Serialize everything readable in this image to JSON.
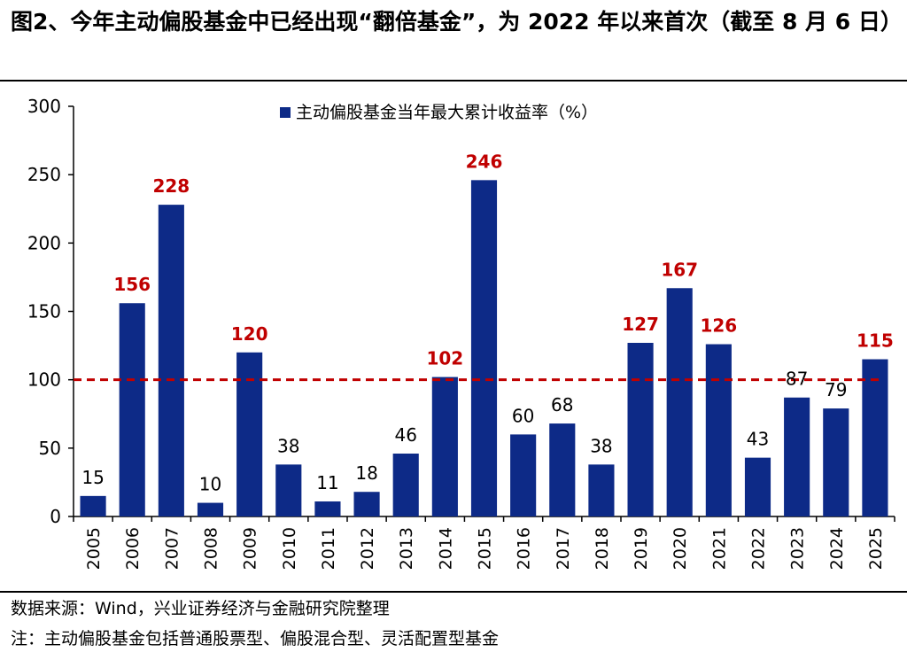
{
  "title": "图2、今年主动偏股基金中已经出现“翻倍基金”，为 2022 年以来首次（截至 8 月 6 日）",
  "source": "数据来源：Wind，兴业证券经济与金融研究院整理",
  "note": "注：主动偏股基金包括普通股票型、偏股混合型、灵活配置型基金",
  "colors": {
    "bar": "#0d2a87",
    "highlight_label": "#c00000",
    "normal_label": "#000000",
    "reference_line": "#c00000"
  },
  "chart_data": {
    "type": "bar",
    "categories": [
      "2005",
      "2006",
      "2007",
      "2008",
      "2009",
      "2010",
      "2011",
      "2012",
      "2013",
      "2014",
      "2015",
      "2016",
      "2017",
      "2018",
      "2019",
      "2020",
      "2021",
      "2022",
      "2023",
      "2024",
      "2025"
    ],
    "series": [
      {
        "name": "主动偏股基金当年最大累计收益率（%）",
        "values": [
          15,
          156,
          228,
          10,
          120,
          38,
          11,
          18,
          46,
          102,
          246,
          60,
          68,
          38,
          127,
          167,
          126,
          43,
          87,
          79,
          115
        ]
      }
    ],
    "highlight_threshold": 100,
    "reference_line": 100,
    "ylim": [
      0,
      300
    ],
    "yticks": [
      0,
      50,
      100,
      150,
      200,
      250,
      300
    ],
    "xlabel": "",
    "ylabel": "",
    "legend_position": "top-center",
    "grid": false
  }
}
